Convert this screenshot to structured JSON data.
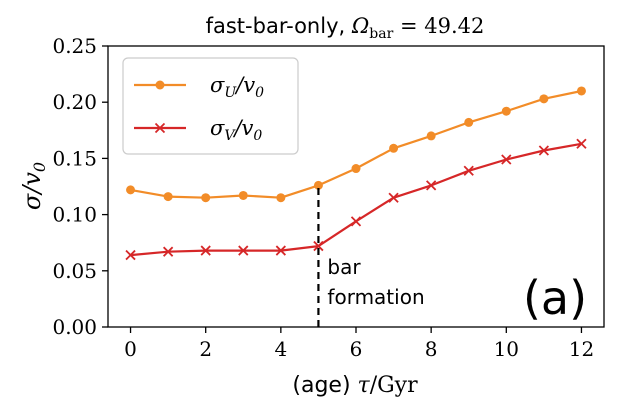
{
  "chart_data": {
    "type": "line",
    "title": {
      "prefix": "fast-bar-only, ",
      "symbol": "Ω",
      "subscript": "bar",
      "suffix": " = 49.42"
    },
    "xlabel": {
      "prefix": "(age) ",
      "symbol": "τ",
      "suffix": "/Gyr"
    },
    "ylabel": {
      "symbol": "σ",
      "suffix": "/v",
      "subscript": "0"
    },
    "xlim": [
      -0.6,
      12.6
    ],
    "ylim": [
      0.0,
      0.25
    ],
    "x_ticks": [
      0,
      2,
      4,
      6,
      8,
      10,
      12
    ],
    "x_tick_labels": [
      "0",
      "2",
      "4",
      "6",
      "8",
      "10",
      "12"
    ],
    "y_ticks": [
      0.0,
      0.05,
      0.1,
      0.15,
      0.2,
      0.25
    ],
    "y_tick_labels": [
      "0.00",
      "0.05",
      "0.10",
      "0.15",
      "0.20",
      "0.25"
    ],
    "x": [
      0,
      1,
      2,
      3,
      4,
      5,
      6,
      7,
      8,
      9,
      10,
      11,
      12
    ],
    "series": [
      {
        "name": "sigma_U",
        "legend": {
          "symbol": "σ",
          "subscript": "U",
          "suffix": "/v",
          "subscript2": "0"
        },
        "color": "#f28c28",
        "marker": "circle",
        "values": [
          0.122,
          0.116,
          0.115,
          0.117,
          0.115,
          0.126,
          0.141,
          0.159,
          0.17,
          0.182,
          0.192,
          0.203,
          0.21
        ]
      },
      {
        "name": "sigma_V",
        "legend": {
          "symbol": "σ",
          "subscript": "V",
          "suffix": "/v",
          "subscript2": "0"
        },
        "color": "#d62728",
        "marker": "x",
        "values": [
          0.064,
          0.067,
          0.068,
          0.068,
          0.068,
          0.072,
          0.094,
          0.115,
          0.126,
          0.139,
          0.149,
          0.157,
          0.163
        ]
      }
    ],
    "annotations": {
      "vline_x": 5,
      "vline_from_y": 0.0,
      "vline_to_y": 0.126,
      "text_lines": [
        "bar",
        "formation"
      ],
      "panel_label": "(a)"
    },
    "legend_position": "top-left",
    "grid": false
  }
}
